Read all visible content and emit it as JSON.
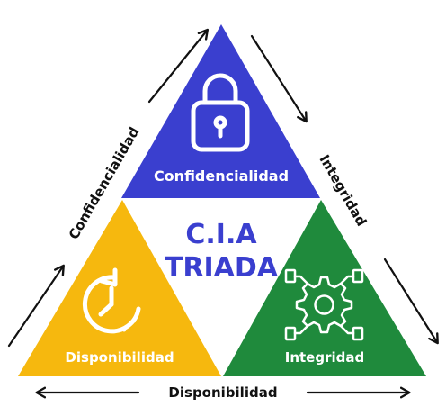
{
  "center": {
    "line1": "C.I.A",
    "line2": "TRIADA"
  },
  "triangles": {
    "top": {
      "label": "Confidencialidad",
      "icon": "padlock-icon",
      "color": "#3a3fcf"
    },
    "left": {
      "label": "Disponibilidad",
      "icon": "clock-refresh-icon",
      "color": "#f6b80e"
    },
    "right": {
      "label": "Integridad",
      "icon": "gear-circuit-icon",
      "color": "#1f8a3c"
    }
  },
  "side_labels": {
    "left": "Confidencialidad",
    "right": "Integridad",
    "bottom": "Disponibilidad"
  },
  "colors": {
    "center_text": "#3a3fcf",
    "outline_text": "#111111",
    "icon_stroke": "#ffffff",
    "arrow": "#111111"
  }
}
